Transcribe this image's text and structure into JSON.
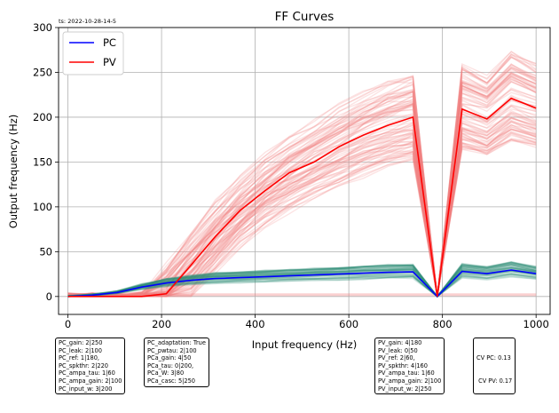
{
  "timestamp": "ts: 2022-10-28-14-5",
  "chart_data": {
    "type": "line",
    "title": "FF Curves",
    "xlabel": "Input frequency (Hz)",
    "ylabel": "Output frequency (Hz)",
    "xlim": [
      -20,
      1030
    ],
    "ylim": [
      -20,
      300
    ],
    "xticks": [
      0,
      200,
      400,
      600,
      800,
      1000
    ],
    "yticks": [
      0,
      50,
      100,
      150,
      200,
      250,
      300
    ],
    "grid": true,
    "legend_position": "top-left",
    "series": [
      {
        "name": "PC",
        "color": "#0000ff",
        "x": [
          0,
          52,
          105,
          158,
          210,
          263,
          315,
          368,
          421,
          473,
          526,
          579,
          631,
          684,
          737,
          789,
          842,
          895,
          947,
          1000
        ],
        "values": [
          0,
          1.5,
          4.5,
          10.5,
          15,
          18,
          20,
          21,
          22,
          23,
          24,
          25,
          26,
          27,
          27.5,
          0,
          28,
          25.5,
          29.5,
          25.5
        ]
      },
      {
        "name": "PV",
        "color": "#ff0000",
        "x": [
          0,
          52,
          105,
          158,
          210,
          263,
          315,
          368,
          421,
          473,
          526,
          579,
          631,
          684,
          737,
          789,
          842,
          895,
          947,
          1000
        ],
        "values": [
          0,
          0,
          0,
          0,
          3,
          35,
          67,
          96,
          118,
          138,
          150,
          167,
          180,
          191,
          200,
          0,
          209,
          198,
          221,
          210
        ]
      }
    ],
    "annotations": [
      [
        "PC_gain: 2|250",
        "PC_leak: 2|100",
        "PC_ref: 1|180,",
        "PC_spkthr: 2|220",
        "PC_ampa_tau: 1|60",
        "PC_ampa_gain: 2|100",
        "PC_input_w: 3|200"
      ],
      [
        "PC_adaptation: True",
        "PC_pwtau: 2|100",
        "PCa_gain: 4|50",
        "PCa_tau: 0|200,",
        "PCa_W: 3|80",
        "PCa_casc: 5|250"
      ],
      [
        "PV_gain: 4|180",
        "PV_leak: 0|50",
        "PV_ref: 2|60,",
        "PV_spkthr: 4|160",
        "PV_ampa_tau: 1|60",
        "PV_ampa_gain: 2|100",
        "PV_input_w: 2|250"
      ],
      [
        "CV PC: 0.13",
        " CV PV: 0.17"
      ]
    ]
  }
}
